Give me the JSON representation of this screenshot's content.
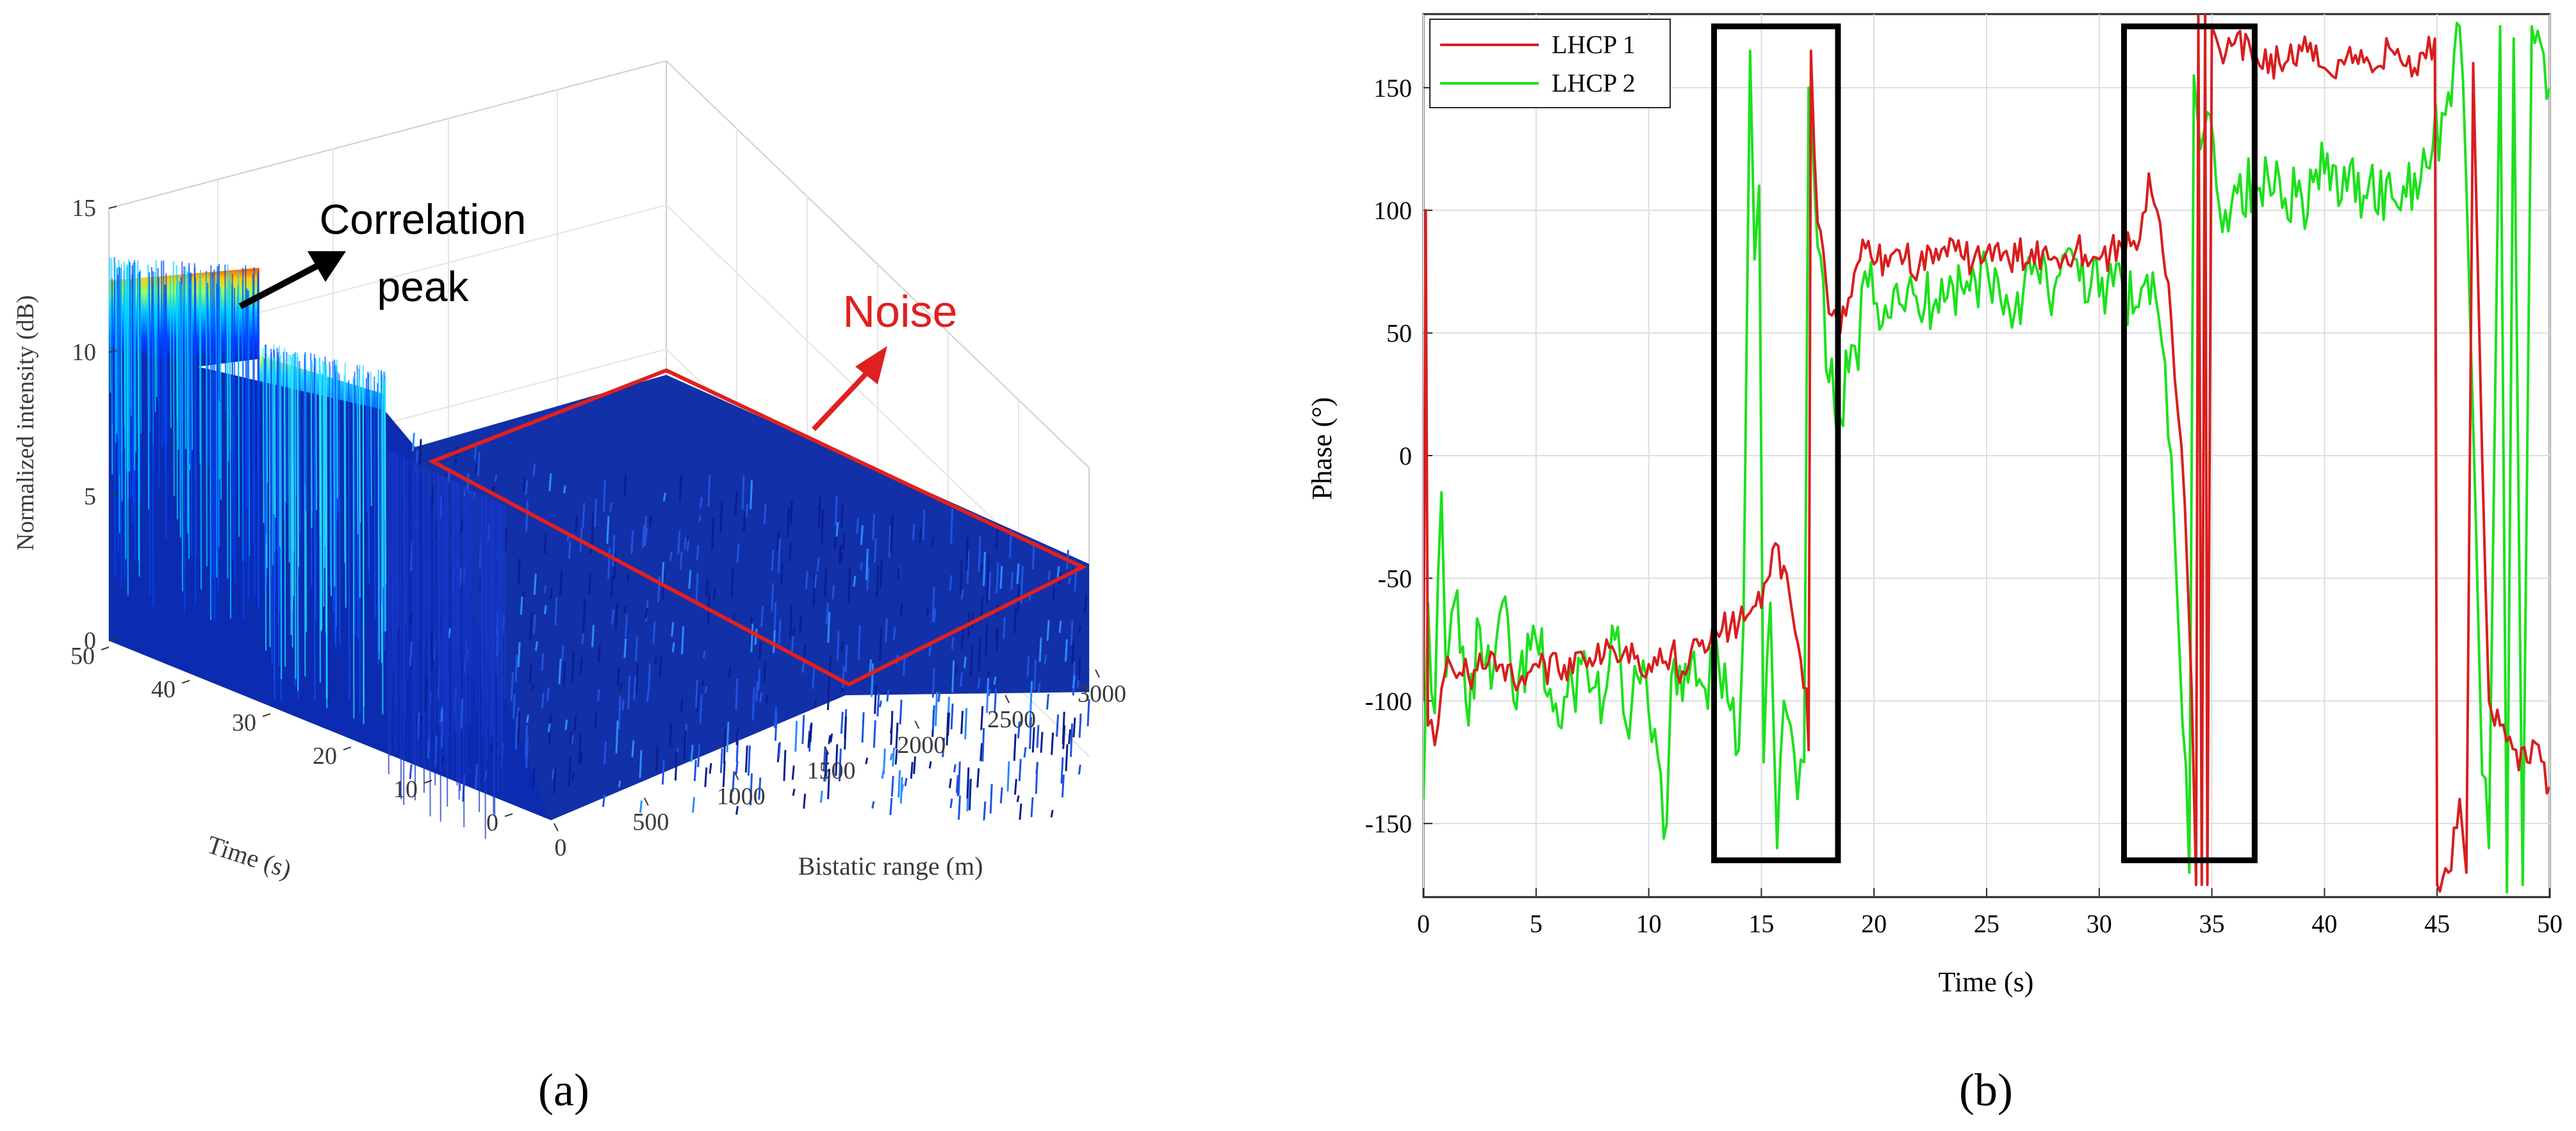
{
  "chart_data": [
    {
      "type": "surface3d",
      "panel_label": "(a)",
      "zlabel": "Normalized intensity (dB)",
      "xlabel": "Bistatic range (m)",
      "ylabel": "Time (s)",
      "zticks": [
        "0",
        "5",
        "10",
        "15"
      ],
      "xticks": [
        "0",
        "500",
        "1000",
        "1500",
        "2000",
        "2500",
        "3000"
      ],
      "yticks": [
        "0",
        "10",
        "20",
        "30",
        "40",
        "50"
      ],
      "zlim": [
        0,
        15
      ],
      "xlim": [
        0,
        3000
      ],
      "ylim": [
        0,
        50
      ],
      "annotations": [
        {
          "text": "Correlation peak",
          "lines": [
            "Correlation",
            "peak"
          ],
          "color": "#000000"
        },
        {
          "text": "Noise",
          "color": "#e02020"
        }
      ],
      "peak_level_db": 11.5,
      "peak_drop_time_s": 32,
      "noise_level_db": 3,
      "colormap": [
        "#00008f",
        "#0000ff",
        "#0080ff",
        "#00ffff",
        "#80ff80",
        "#ffff00",
        "#ff8000",
        "#ff0000"
      ]
    },
    {
      "type": "line",
      "panel_label": "(b)",
      "xlabel": "Time (s)",
      "ylabel": "Phase (°)",
      "xlim": [
        0,
        50
      ],
      "ylim": [
        -180,
        180
      ],
      "xticks": [
        "0",
        "5",
        "10",
        "15",
        "20",
        "25",
        "30",
        "35",
        "40",
        "45",
        "50"
      ],
      "yticks": [
        "150",
        "100",
        "50",
        "0",
        "-50",
        "-100",
        "-150"
      ],
      "ytick_values": [
        150,
        100,
        50,
        0,
        -50,
        -100,
        -150
      ],
      "grid": true,
      "legend_position": "top-left",
      "series": [
        {
          "name": "LHCP 1",
          "color": "#d81e1e",
          "points": [
            [
              0,
              -100
            ],
            [
              0.1,
              100
            ],
            [
              0.2,
              -110
            ],
            [
              0.5,
              -118
            ],
            [
              0.8,
              -95
            ],
            [
              1.2,
              -85
            ],
            [
              2,
              -90
            ],
            [
              3,
              -80
            ],
            [
              4,
              -92
            ],
            [
              5,
              -85
            ],
            [
              6,
              -88
            ],
            [
              7,
              -80
            ],
            [
              8,
              -82
            ],
            [
              9,
              -78
            ],
            [
              10,
              -85
            ],
            [
              11,
              -80
            ],
            [
              11.5,
              -88
            ],
            [
              12,
              -75
            ],
            [
              13,
              -72
            ],
            [
              14,
              -68
            ],
            [
              14.5,
              -64
            ],
            [
              15,
              -62
            ],
            [
              15.5,
              -38
            ],
            [
              16,
              -45
            ],
            [
              16.5,
              -72
            ],
            [
              17,
              -95
            ],
            [
              17.1,
              -120
            ],
            [
              17.2,
              165
            ],
            [
              17.5,
              95
            ],
            [
              18,
              58
            ],
            [
              18.5,
              50
            ],
            [
              19,
              65
            ],
            [
              19.5,
              88
            ],
            [
              20,
              78
            ],
            [
              21,
              84
            ],
            [
              22,
              77
            ],
            [
              23,
              84
            ],
            [
              24,
              80
            ],
            [
              25,
              83
            ],
            [
              26,
              79
            ],
            [
              27,
              84
            ],
            [
              28,
              81
            ],
            [
              29,
              85
            ],
            [
              30,
              80
            ],
            [
              31,
              85
            ],
            [
              31.8,
              88
            ],
            [
              32.2,
              115
            ],
            [
              32.7,
              95
            ],
            [
              33.2,
              55
            ],
            [
              33.8,
              -20
            ],
            [
              34.1,
              -95
            ],
            [
              34.3,
              -175
            ],
            [
              34.4,
              180
            ],
            [
              34.55,
              -175
            ],
            [
              34.7,
              180
            ],
            [
              34.8,
              -175
            ],
            [
              35,
              175
            ],
            [
              35.2,
              170
            ],
            [
              35.5,
              160
            ],
            [
              36,
              168
            ],
            [
              37,
              162
            ],
            [
              38,
              160
            ],
            [
              39,
              165
            ],
            [
              40,
              158
            ],
            [
              41,
              163
            ],
            [
              42,
              160
            ],
            [
              43,
              165
            ],
            [
              44,
              158
            ],
            [
              44.5,
              162
            ],
            [
              44.9,
              170
            ],
            [
              45,
              -175
            ],
            [
              45.5,
              -170
            ],
            [
              46,
              -140
            ],
            [
              46.3,
              -170
            ],
            [
              46.6,
              160
            ],
            [
              47,
              0
            ],
            [
              47.3,
              -100
            ],
            [
              47.8,
              -110
            ],
            [
              48.5,
              -120
            ],
            [
              49,
              -125
            ],
            [
              49.5,
              -118
            ],
            [
              50,
              -135
            ]
          ]
        },
        {
          "name": "LHCP 2",
          "color": "#1ee01e",
          "points": [
            [
              0,
              -140
            ],
            [
              0.2,
              -60
            ],
            [
              0.5,
              -105
            ],
            [
              0.8,
              -15
            ],
            [
              1,
              -90
            ],
            [
              1.5,
              -55
            ],
            [
              2,
              -110
            ],
            [
              2.5,
              -70
            ],
            [
              3,
              -95
            ],
            [
              3.5,
              -60
            ],
            [
              4,
              -100
            ],
            [
              5,
              -75
            ],
            [
              6,
              -110
            ],
            [
              7,
              -85
            ],
            [
              8,
              -100
            ],
            [
              8.5,
              -75
            ],
            [
              9,
              -110
            ],
            [
              9.5,
              -90
            ],
            [
              10,
              -105
            ],
            [
              10.8,
              -150
            ],
            [
              11,
              -90
            ],
            [
              11.5,
              -100
            ],
            [
              12,
              -80
            ],
            [
              12.5,
              -95
            ],
            [
              13,
              -75
            ],
            [
              13.5,
              -100
            ],
            [
              14,
              -120
            ],
            [
              14.2,
              -70
            ],
            [
              14.5,
              165
            ],
            [
              14.7,
              80
            ],
            [
              14.9,
              110
            ],
            [
              15.1,
              -125
            ],
            [
              15.4,
              -60
            ],
            [
              15.7,
              -160
            ],
            [
              16,
              -100
            ],
            [
              16.3,
              -110
            ],
            [
              16.6,
              -140
            ],
            [
              16.9,
              -125
            ],
            [
              17.1,
              150
            ],
            [
              17.5,
              85
            ],
            [
              18,
              30
            ],
            [
              18.5,
              15
            ],
            [
              19,
              45
            ],
            [
              19.3,
              35
            ],
            [
              19.6,
              75
            ],
            [
              20,
              62
            ],
            [
              21,
              70
            ],
            [
              22,
              58
            ],
            [
              23,
              72
            ],
            [
              24,
              66
            ],
            [
              25,
              78
            ],
            [
              26,
              60
            ],
            [
              27,
              74
            ],
            [
              28,
              68
            ],
            [
              29,
              80
            ],
            [
              30,
              65
            ],
            [
              31,
              72
            ],
            [
              31.5,
              58
            ],
            [
              32,
              70
            ],
            [
              32.5,
              65
            ],
            [
              33.2,
              0
            ],
            [
              33.7,
              -110
            ],
            [
              34,
              -170
            ],
            [
              34.2,
              155
            ],
            [
              34.5,
              125
            ],
            [
              34.8,
              140
            ],
            [
              35.2,
              110
            ],
            [
              35.6,
              100
            ],
            [
              36,
              110
            ],
            [
              37,
              108
            ],
            [
              38,
              113
            ],
            [
              39,
              105
            ],
            [
              40,
              115
            ],
            [
              41,
              108
            ],
            [
              42,
              112
            ],
            [
              43,
              105
            ],
            [
              44,
              115
            ],
            [
              44.8,
              125
            ],
            [
              45.5,
              148
            ],
            [
              46,
              175
            ],
            [
              46.3,
              110
            ],
            [
              46.7,
              -20
            ],
            [
              47,
              -130
            ],
            [
              47.3,
              -160
            ],
            [
              47.8,
              175
            ],
            [
              48.1,
              -178
            ],
            [
              48.4,
              170
            ],
            [
              48.8,
              -175
            ],
            [
              49.2,
              175
            ],
            [
              49.6,
              168
            ],
            [
              50,
              150
            ]
          ]
        }
      ],
      "highlight_boxes": [
        {
          "x0": 12.9,
          "x1": 18.4,
          "y0": -165,
          "y1": 175
        },
        {
          "x0": 31.1,
          "x1": 36.9,
          "y0": -165,
          "y1": 175
        }
      ]
    }
  ]
}
